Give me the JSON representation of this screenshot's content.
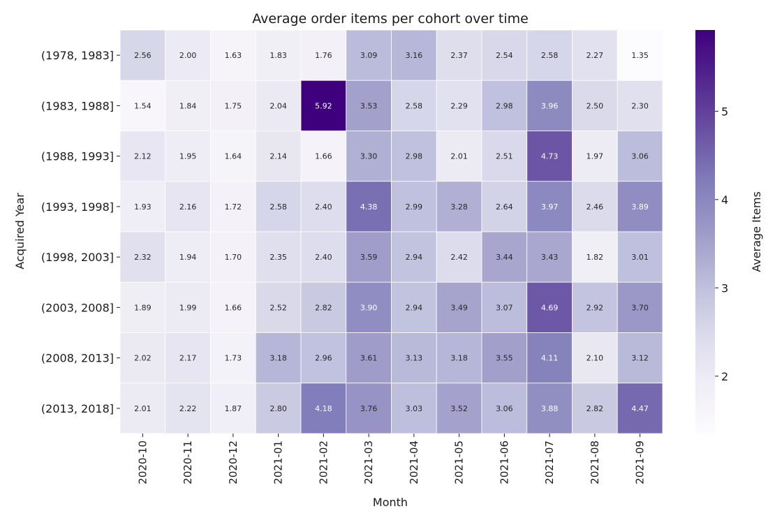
{
  "chart_data": {
    "type": "heatmap",
    "title": "Average order items per cohort over time",
    "xlabel": "Month",
    "ylabel": "Acquired Year",
    "colorbar_label": "Average Items",
    "colormap": "Purples",
    "color_range": [
      1.35,
      5.92
    ],
    "colorbar_ticks": [
      2,
      3,
      4,
      5
    ],
    "x": [
      "2020-10",
      "2020-11",
      "2020-12",
      "2021-01",
      "2021-02",
      "2021-03",
      "2021-04",
      "2021-05",
      "2021-06",
      "2021-07",
      "2021-08",
      "2021-09"
    ],
    "y": [
      "(1978, 1983]",
      "(1983, 1988]",
      "(1988, 1993]",
      "(1993, 1998]",
      "(1998, 2003]",
      "(2003, 2008]",
      "(2008, 2013]",
      "(2013, 2018]"
    ],
    "values": [
      [
        2.56,
        2.0,
        1.63,
        1.83,
        1.76,
        3.09,
        3.16,
        2.37,
        2.54,
        2.58,
        2.27,
        1.35
      ],
      [
        1.54,
        1.84,
        1.75,
        2.04,
        5.92,
        3.53,
        2.58,
        2.29,
        2.98,
        3.96,
        2.5,
        2.3
      ],
      [
        2.12,
        1.95,
        1.64,
        2.14,
        1.66,
        3.3,
        2.98,
        2.01,
        2.51,
        4.73,
        1.97,
        3.06
      ],
      [
        1.93,
        2.16,
        1.72,
        2.58,
        2.4,
        4.38,
        2.99,
        3.28,
        2.64,
        3.97,
        2.46,
        3.89
      ],
      [
        2.32,
        1.94,
        1.7,
        2.35,
        2.4,
        3.59,
        2.94,
        2.42,
        3.44,
        3.43,
        1.82,
        3.01
      ],
      [
        1.89,
        1.99,
        1.66,
        2.52,
        2.82,
        3.9,
        2.94,
        3.49,
        3.07,
        4.69,
        2.92,
        3.7
      ],
      [
        2.02,
        2.17,
        1.73,
        3.18,
        2.96,
        3.61,
        3.13,
        3.18,
        3.55,
        4.11,
        2.1,
        3.12
      ],
      [
        2.01,
        2.22,
        1.87,
        2.8,
        4.18,
        3.76,
        3.03,
        3.52,
        3.06,
        3.88,
        2.82,
        4.47
      ]
    ],
    "grid": false,
    "legend": "colorbar-right"
  }
}
